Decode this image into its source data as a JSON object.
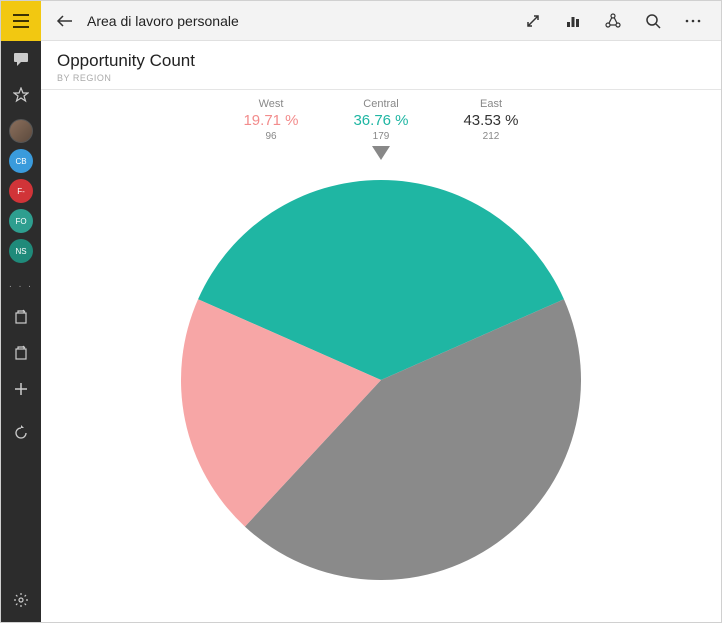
{
  "topbar": {
    "workspace_title": "Area di lavoro personale"
  },
  "header": {
    "title": "Opportunity Count",
    "subtitle": "BY REGION"
  },
  "sidebar": {
    "avatars": [
      {
        "initials": "",
        "color": "photo"
      },
      {
        "initials": "CB",
        "color": "#3a9bdc"
      },
      {
        "initials": "F-",
        "color": "#d13438"
      },
      {
        "initials": "FO",
        "color": "#2e9e8f"
      },
      {
        "initials": "NS",
        "color": "#1f8a7a"
      }
    ]
  },
  "chart": {
    "type": "pie",
    "radius": 200,
    "background_color": "#ffffff",
    "selected_index": 1,
    "series": [
      {
        "label": "West",
        "percent_text": "19.71 %",
        "percent": 19.71,
        "count": "96",
        "color": "#f7a6a6"
      },
      {
        "label": "Central",
        "percent_text": "36.76 %",
        "percent": 36.76,
        "count": "179",
        "color": "#1fb6a3"
      },
      {
        "label": "East",
        "percent_text": "43.53 %",
        "percent": 43.53,
        "count": "212",
        "color": "#8a8a8a"
      }
    ],
    "label_fontsize": 11,
    "percent_fontsize": 15,
    "count_fontsize": 10
  }
}
